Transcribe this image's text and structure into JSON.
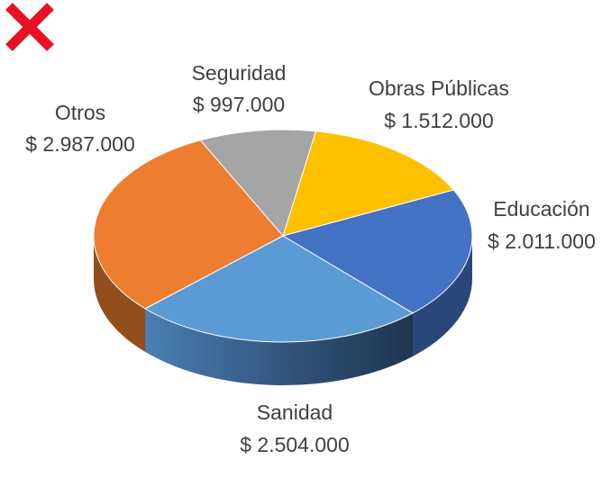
{
  "status_icon": {
    "name": "close-icon",
    "color": "#e81123"
  },
  "chart_data": {
    "type": "pie",
    "three_d": true,
    "title": "",
    "value_prefix": "$ ",
    "slices": [
      {
        "name": "Obras Públicas",
        "value": 1512000,
        "value_label": "$ 1.512.000",
        "color": "#ffc000"
      },
      {
        "name": "Educación",
        "value": 2011000,
        "value_label": "$ 2.011.000",
        "color": "#4472c4"
      },
      {
        "name": "Sanidad",
        "value": 2504000,
        "value_label": "$ 2.504.000",
        "color": "#5b9bd5"
      },
      {
        "name": "Otros",
        "value": 2987000,
        "value_label": "$ 2.987.000",
        "color": "#ed7d31"
      },
      {
        "name": "Seguridad",
        "value": 997000,
        "value_label": "$ 997.000",
        "color": "#a5a5a5"
      }
    ]
  }
}
